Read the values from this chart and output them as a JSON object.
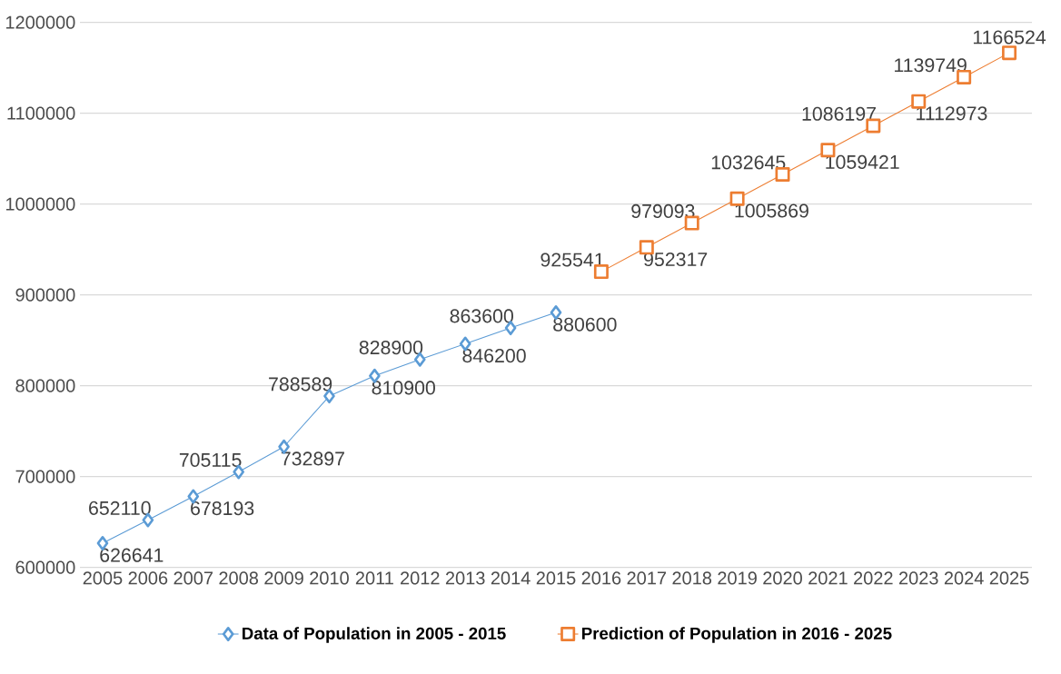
{
  "chart_data": {
    "type": "line",
    "categories": [
      "2005",
      "2006",
      "2007",
      "2008",
      "2009",
      "2010",
      "2011",
      "2012",
      "2013",
      "2014",
      "2015",
      "2016",
      "2017",
      "2018",
      "2019",
      "2020",
      "2021",
      "2022",
      "2023",
      "2024",
      "2025"
    ],
    "series": [
      {
        "name": "Data of Population in 2005 - 2015",
        "color": "#5b9bd5",
        "marker": "diamond",
        "values": [
          626641,
          652110,
          678193,
          705115,
          732897,
          788589,
          810900,
          828900,
          846200,
          863600,
          880600,
          null,
          null,
          null,
          null,
          null,
          null,
          null,
          null,
          null,
          null
        ]
      },
      {
        "name": "Prediction of Population in 2016 - 2025",
        "color": "#ed7d31",
        "marker": "square",
        "values": [
          null,
          null,
          null,
          null,
          null,
          null,
          null,
          null,
          null,
          null,
          null,
          925541,
          952317,
          979093,
          1005869,
          1032645,
          1059421,
          1086197,
          1112973,
          1139749,
          1166524
        ]
      }
    ],
    "ylim": [
      600000,
      1200000
    ],
    "yticks": [
      600000,
      700000,
      800000,
      900000,
      1000000,
      1100000,
      1200000
    ],
    "grid": "y",
    "legend": "bottom",
    "data_labels": true
  }
}
